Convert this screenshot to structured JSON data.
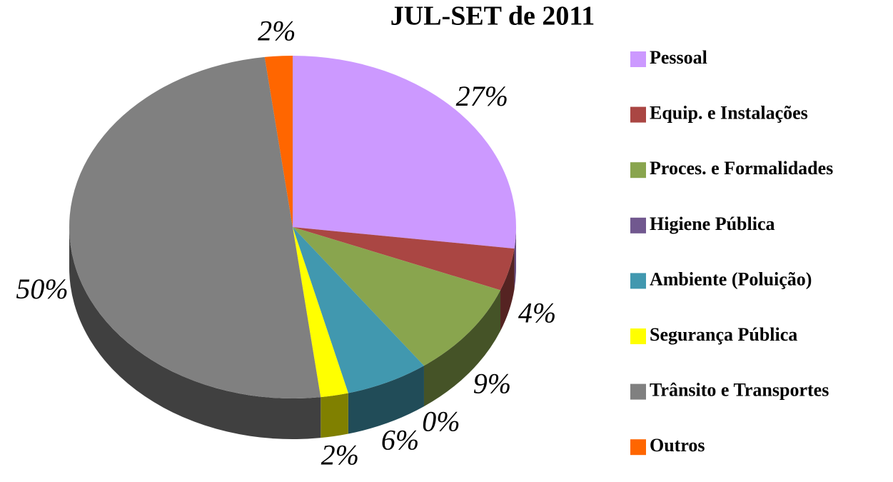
{
  "chart_data": {
    "type": "pie",
    "title": "JUL-SET de 2011",
    "categories": [
      "Pessoal",
      "Equip. e Instalações",
      "Proces. e Formalidades",
      "Higiene Pública",
      "Ambiente (Poluição)",
      "Segurança Pública",
      "Trânsito e Transportes",
      "Outros"
    ],
    "values": [
      27,
      4,
      9,
      0,
      6,
      2,
      50,
      2
    ],
    "value_labels": [
      "27%",
      "4%",
      "9%",
      "0%",
      "6%",
      "2%",
      "50%",
      "2%"
    ],
    "colors": [
      "#cc99ff",
      "#aa4643",
      "#89a54e",
      "#71588f",
      "#4198af",
      "#ffff00",
      "#808080",
      "#ff6600"
    ],
    "legend": "right"
  }
}
